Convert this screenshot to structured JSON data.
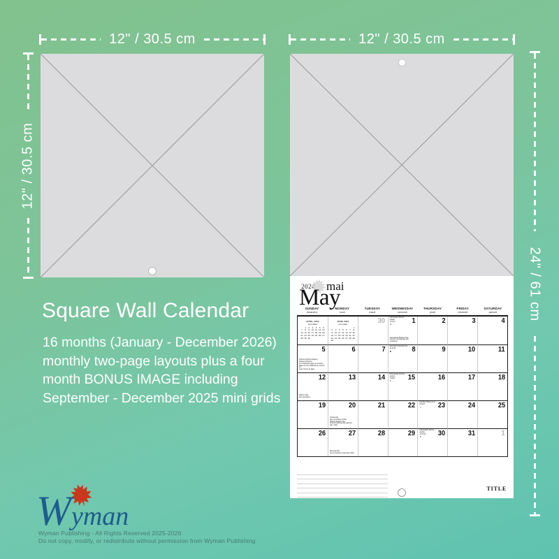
{
  "colors": {
    "background_top": "#82c28e",
    "background_bottom": "#5ec3b0",
    "dimension_text": "#ffffff",
    "placeholder_gray": "#dcdcde",
    "logo_blue": "#1d5c8e",
    "leaf_red": "#c8381d"
  },
  "dimensions": {
    "left_width": "12\" / 30.5 cm",
    "left_height": "12\" / 30.5 cm",
    "right_width": "12\" / 30.5 cm",
    "right_height": "24\" / 61 cm"
  },
  "headline": "Square Wall Calendar",
  "description_lines": [
    "16 months (January - December 2026)",
    "monthly two-page layouts plus a four",
    "month BONUS IMAGE including",
    "September - December 2025 mini grids"
  ],
  "logo": {
    "text": "Wyman"
  },
  "footer_lines": [
    "Wyman Publishing - All Rights Reserved 2025-2026",
    "Do not copy, modify, or redistribute without permission from Wyman Publishing"
  ],
  "calendar": {
    "year": "2024",
    "month_fr": "mai",
    "month_en": "May",
    "title_label": "TITLE",
    "day_headers": [
      {
        "en": "SUNDAY",
        "fr": "dimanche"
      },
      {
        "en": "MONDAY",
        "fr": "lundi"
      },
      {
        "en": "TUESDAY",
        "fr": "mardi"
      },
      {
        "en": "WEDNESDAY",
        "fr": "mercredi"
      },
      {
        "en": "THURSDAY",
        "fr": "jeudi"
      },
      {
        "en": "FRIDAY",
        "fr": "vendredi"
      },
      {
        "en": "SATURDAY",
        "fr": "samedi"
      }
    ],
    "mini_calendars": [
      {
        "title": "APRIL 2024",
        "subtitle": "avril 2024",
        "cells": [
          "",
          "1",
          "2",
          "3",
          "4",
          "5",
          "6",
          "7",
          "8",
          "9",
          "10",
          "11",
          "12",
          "13",
          "14",
          "15",
          "16",
          "17",
          "18",
          "19",
          "20",
          "21",
          "22",
          "23",
          "24",
          "25",
          "26",
          "27",
          "28",
          "29",
          "30",
          "",
          "",
          "",
          ""
        ]
      },
      {
        "title": "JUNE 2024",
        "subtitle": "juin 2024",
        "cells": [
          "",
          "",
          "",
          "",
          "",
          "",
          "1",
          "2",
          "3",
          "4",
          "5",
          "6",
          "7",
          "8",
          "9",
          "10",
          "11",
          "12",
          "13",
          "14",
          "15",
          "16",
          "17",
          "18",
          "19",
          "20",
          "21",
          "22",
          "23",
          "24",
          "25",
          "26",
          "27",
          "28",
          "29",
          "30",
          "",
          "",
          "",
          "",
          "",
          ""
        ]
      }
    ],
    "weeks": [
      [
        {
          "mini": 0
        },
        {
          "mini": 1
        },
        {
          "n": "30",
          "muted": true
        },
        {
          "n": "1",
          "top": [
            "Last Quarter Dernier quartier",
            "7:27 ET"
          ],
          "moon": "◑",
          "bottom": [
            "International Workers' Day",
            "Journée internationale des travailleurs"
          ]
        },
        {
          "n": "2"
        },
        {
          "n": "3"
        },
        {
          "n": "4"
        }
      ],
      [
        {
          "n": "5",
          "bottom": [
            "Pascha (Orthodox Easter)",
            "Pâques orthodoxe",
            "Yom HaShoah begins at sundown",
            "Début du Yom HaShoah au coucher du",
            "soleil / Cinco de Mayo"
          ]
        },
        {
          "n": "6"
        },
        {
          "n": "7"
        },
        {
          "n": "8",
          "top": [
            "New Moon Nouvelle lune",
            "11:22 ET"
          ],
          "moon": "●"
        },
        {
          "n": "9"
        },
        {
          "n": "10"
        },
        {
          "n": "11"
        }
      ],
      [
        {
          "n": "12",
          "bottom": [
            "Mother's Day",
            "Fête des Mères"
          ]
        },
        {
          "n": "13"
        },
        {
          "n": "14"
        },
        {
          "n": "15",
          "top": [
            "First Quarter Premier quartier",
            "7:48 ET"
          ],
          "moon": "◐"
        },
        {
          "n": "16"
        },
        {
          "n": "17"
        },
        {
          "n": "18"
        }
      ],
      [
        {
          "n": "19"
        },
        {
          "n": "20",
          "bottom": [
            "Victoria Day",
            "Fête de la Reine (CAN)",
            "National Patriots' Day",
            "Journée nationale des patriotes",
            "(QC, CAN)"
          ]
        },
        {
          "n": "21"
        },
        {
          "n": "22"
        },
        {
          "n": "23",
          "top": [
            "Full Moon Pleine lune",
            "9:53 ET"
          ],
          "moon": "○"
        },
        {
          "n": "24"
        },
        {
          "n": "25"
        }
      ],
      [
        {
          "n": "26"
        },
        {
          "n": "27",
          "bottom": [
            "Memorial Day",
            "Jour du Souvenir américain (USA)"
          ]
        },
        {
          "n": "28"
        },
        {
          "n": "29"
        },
        {
          "n": "30",
          "top": [
            "Last Quarter Dernier quartier",
            "13:13 ET"
          ],
          "moon": "◑"
        },
        {
          "n": "31"
        },
        {
          "n": "1",
          "muted": true
        }
      ]
    ]
  }
}
